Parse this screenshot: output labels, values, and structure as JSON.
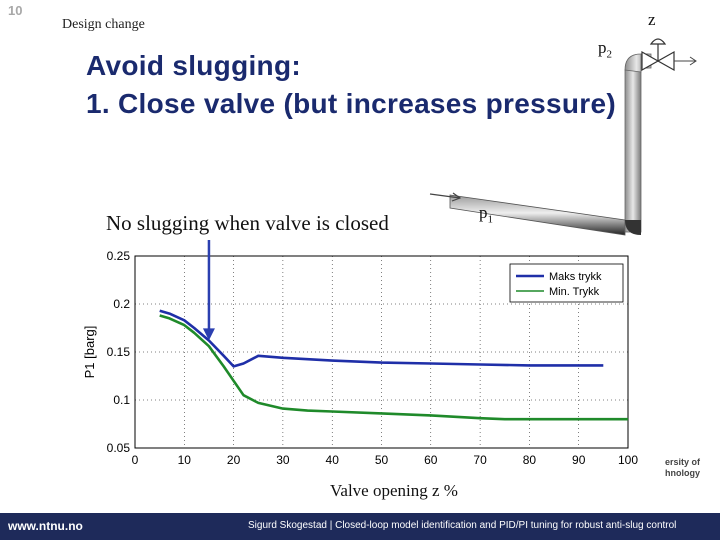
{
  "slide": {
    "number": "10",
    "section": "Design change",
    "title_line1": "Avoid slugging:",
    "title_line2": "1. Close valve (but increases pressure)",
    "note": "No slugging when valve is closed",
    "diagram_labels": {
      "z": "z",
      "p2": "p2",
      "p1": "p1"
    },
    "logo_fragment": [
      "ersity of",
      "hnology"
    ],
    "footer": {
      "brand": "www.ntnu.no",
      "text": "Sigurd Skogestad | Closed-loop model identification and PID/PI tuning for robust anti-slug control"
    }
  },
  "colors": {
    "title": "#1a2a6e",
    "series_max": "#1f2fa8",
    "series_min": "#1f8a2a",
    "arrow": "#2b3fb0",
    "footer": "#1e2a5a"
  },
  "chart_data": {
    "type": "line",
    "title": "",
    "xlabel": "Valve opening z %",
    "ylabel": "P1 [barg]",
    "xlim": [
      0,
      100
    ],
    "ylim": [
      0.05,
      0.25
    ],
    "xticks": [
      0,
      10,
      20,
      30,
      40,
      50,
      60,
      70,
      80,
      90,
      100
    ],
    "yticks": [
      0.05,
      0.1,
      0.15,
      0.2,
      0.25
    ],
    "legend_position": "top-right",
    "series": [
      {
        "name": "Maks trykk",
        "color": "#1f2fa8",
        "x": [
          5,
          7,
          10,
          12,
          15,
          18,
          20,
          22,
          25,
          30,
          40,
          50,
          60,
          70,
          80,
          90,
          95
        ],
        "y": [
          0.193,
          0.19,
          0.183,
          0.175,
          0.162,
          0.146,
          0.135,
          0.138,
          0.146,
          0.144,
          0.141,
          0.139,
          0.138,
          0.137,
          0.136,
          0.136,
          0.136
        ]
      },
      {
        "name": "Min. Trykk",
        "color": "#1f8a2a",
        "x": [
          5,
          7,
          10,
          12,
          15,
          18,
          20,
          22,
          25,
          30,
          35,
          40,
          50,
          60,
          70,
          75,
          80,
          90,
          100
        ],
        "y": [
          0.188,
          0.185,
          0.178,
          0.17,
          0.156,
          0.135,
          0.12,
          0.105,
          0.097,
          0.091,
          0.089,
          0.088,
          0.086,
          0.084,
          0.081,
          0.08,
          0.08,
          0.08,
          0.08
        ]
      }
    ]
  }
}
